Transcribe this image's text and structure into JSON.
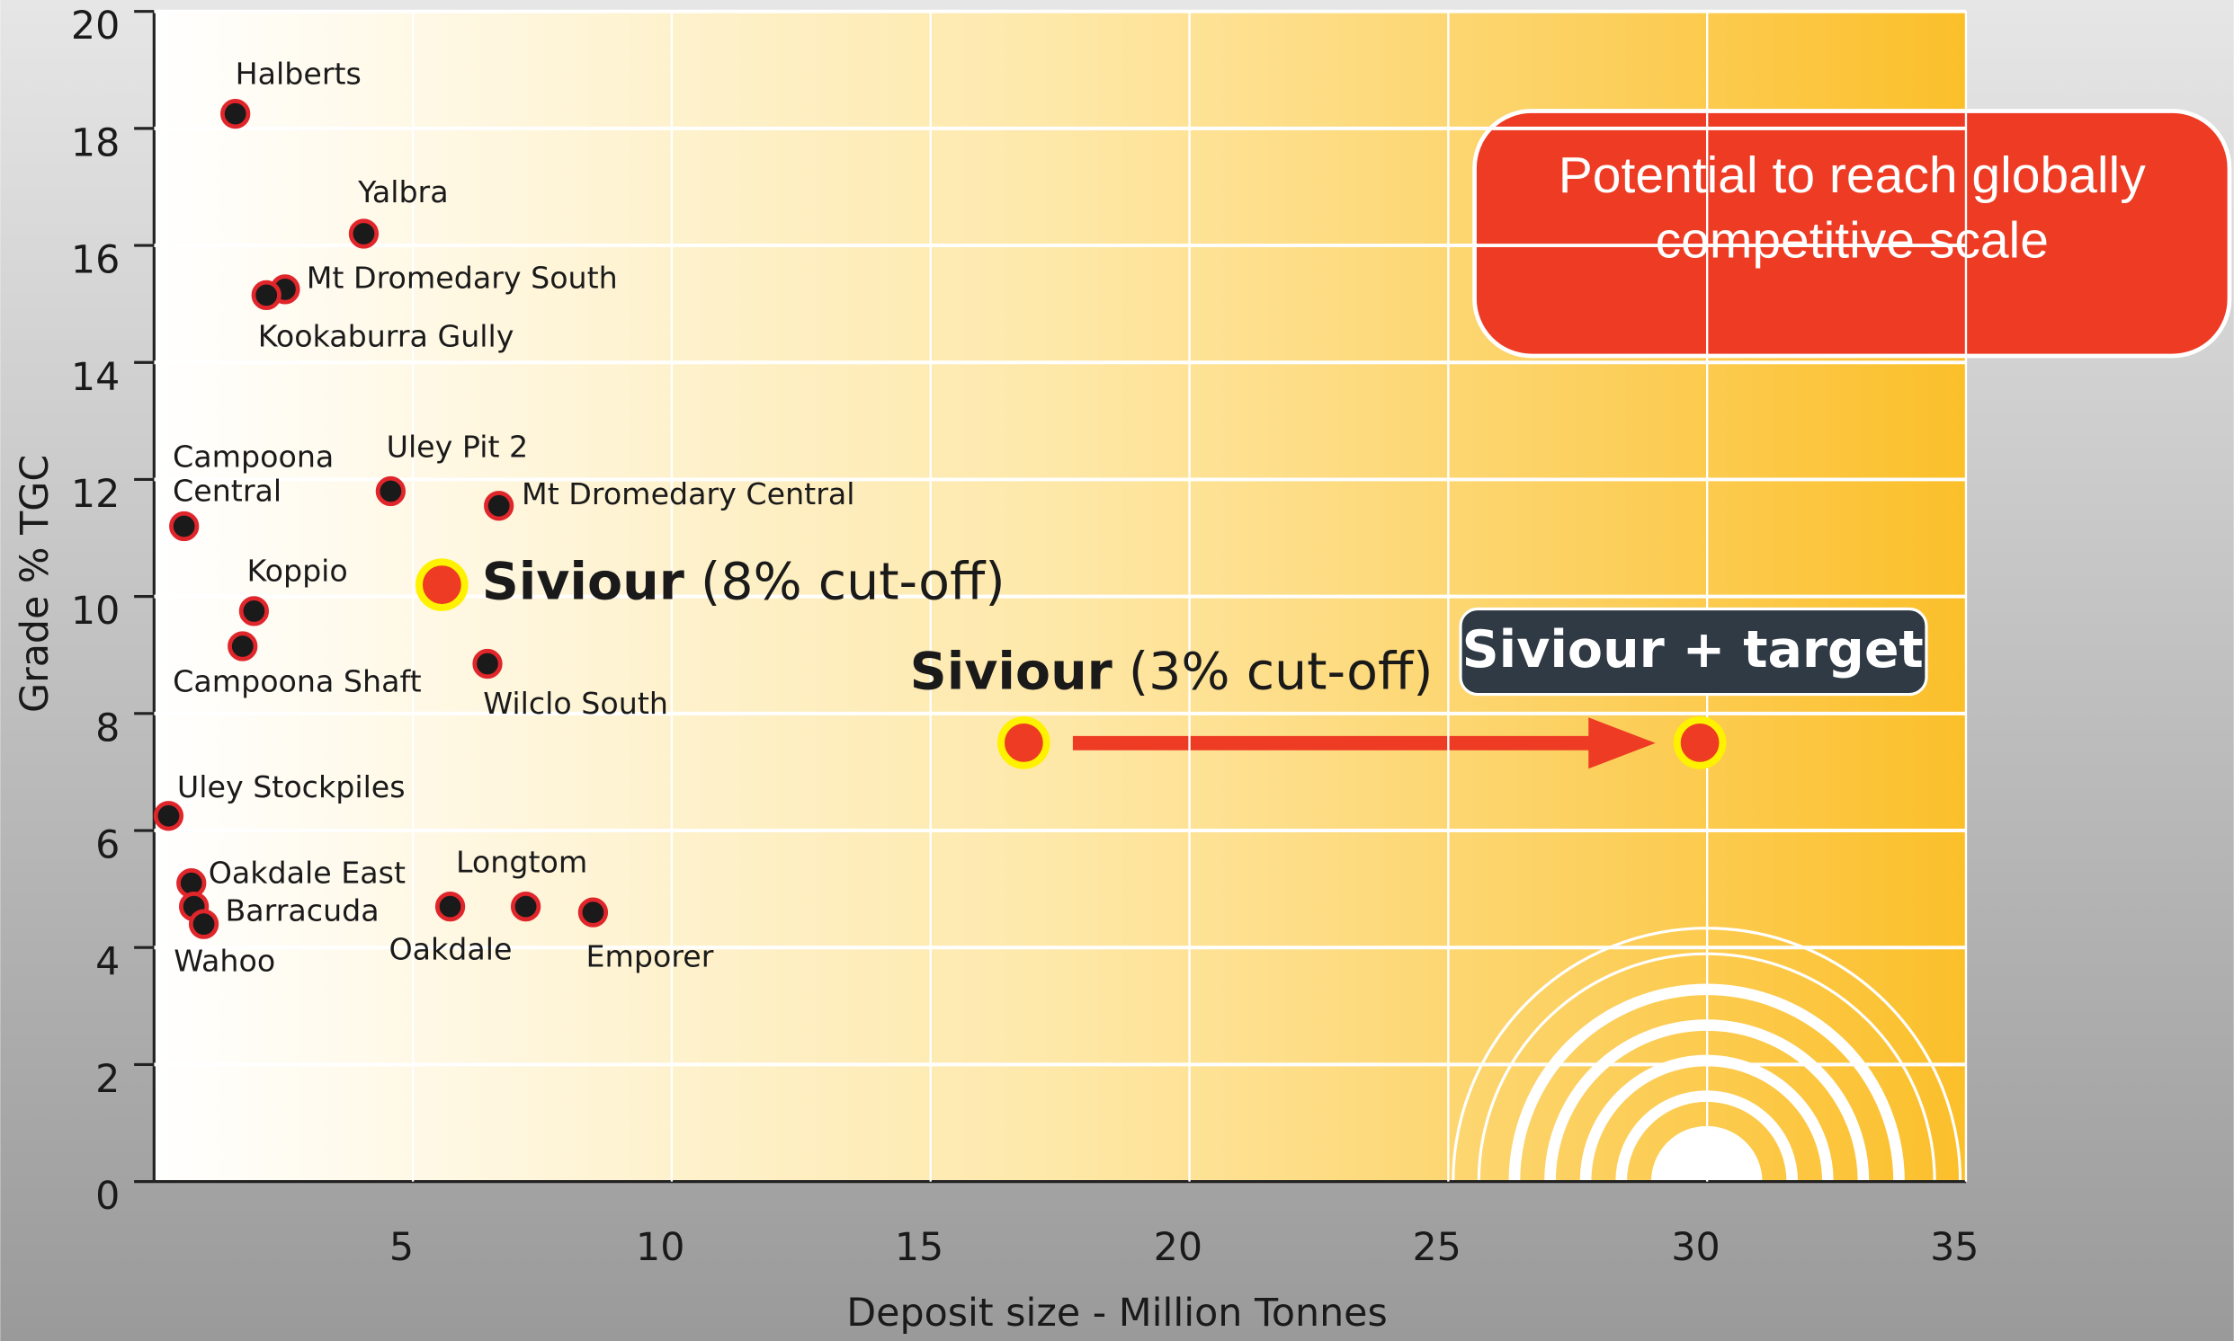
{
  "chart_data": {
    "type": "scatter",
    "x_label": "Deposit size - Million Tonnes",
    "y_label": "Grade % TGC",
    "xlim": [
      0,
      35
    ],
    "ylim": [
      0,
      20
    ],
    "xticks": [
      5,
      10,
      15,
      20,
      25,
      30,
      35
    ],
    "yticks": [
      0,
      2,
      4,
      6,
      8,
      10,
      12,
      14,
      16,
      18,
      20
    ],
    "grid": true,
    "point_color": "#1a1a1a",
    "point_edge": "#e0262b",
    "points": [
      {
        "name": "Halberts",
        "x": 1.57,
        "y": 18.25
      },
      {
        "name": "Yalbra",
        "x": 4.05,
        "y": 16.2
      },
      {
        "name": "Mt Dromedary South",
        "x": 2.53,
        "y": 15.25
      },
      {
        "name": "Kookaburra Gully",
        "x": 2.17,
        "y": 15.15
      },
      {
        "name": "Uley Pit 2",
        "x": 4.57,
        "y": 11.8
      },
      {
        "name": "Mt Dromedary Central",
        "x": 6.66,
        "y": 11.55
      },
      {
        "name": "Campoona Central",
        "x": 0.58,
        "y": 11.2
      },
      {
        "name": "Koppio",
        "x": 1.93,
        "y": 9.75
      },
      {
        "name": "Campoona Shaft",
        "x": 1.71,
        "y": 9.15
      },
      {
        "name": "Wilclo South",
        "x": 6.44,
        "y": 8.85
      },
      {
        "name": "Uley Stockpiles",
        "x": 0.28,
        "y": 6.25
      },
      {
        "name": "Oakdale East",
        "x": 0.72,
        "y": 5.1
      },
      {
        "name": "Barracuda",
        "x": 0.77,
        "y": 4.7
      },
      {
        "name": "Wahoo",
        "x": 0.96,
        "y": 4.4
      },
      {
        "name": "Oakdale",
        "x": 5.72,
        "y": 4.7
      },
      {
        "name": "Longtom",
        "x": 7.18,
        "y": 4.7
      },
      {
        "name": "Emporer",
        "x": 8.48,
        "y": 4.6
      }
    ],
    "highlight_color": "#ee3b24",
    "highlight_edge": "#fff200",
    "highlights": [
      {
        "name": "Siviour",
        "detail": "(8% cut-off)",
        "x": 5.56,
        "y": 10.2
      },
      {
        "name": "Siviour",
        "detail": "(3% cut-off)",
        "x": 16.8,
        "y": 7.5
      },
      {
        "name": "Siviour + target",
        "x": 29.86,
        "y": 7.5
      }
    ],
    "annotation": "Potential to reach globally competitive scale"
  }
}
